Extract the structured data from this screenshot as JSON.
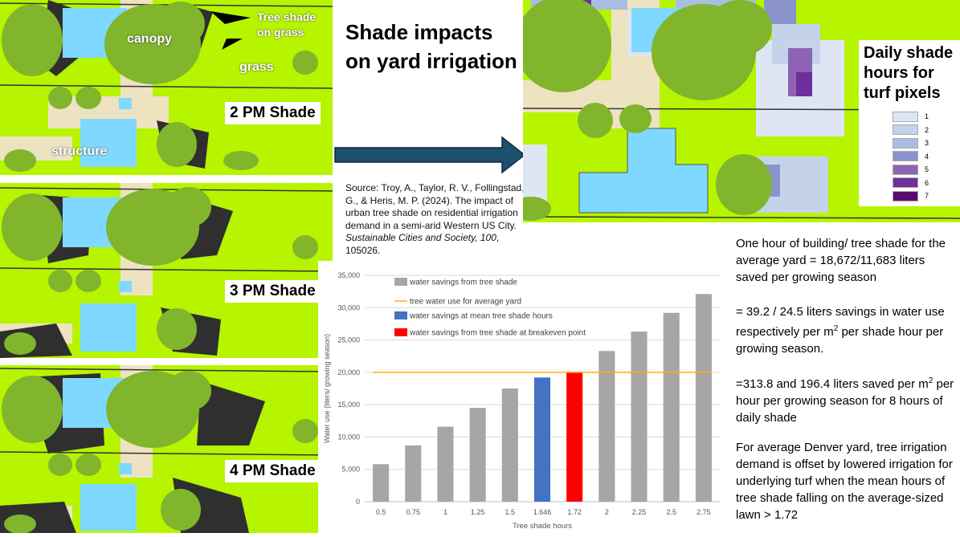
{
  "title": "Shade impacts on yard irrigation",
  "map_labels": {
    "tree_shade_on_grass": "Tree shade on grass",
    "canopy": "canopy",
    "grass": "grass",
    "structure": "structure"
  },
  "panels": [
    "2 PM Shade",
    "3 PM Shade",
    "4 PM Shade"
  ],
  "source": {
    "pre": "Source: Troy, A., Taylor, R. V., Follingstad, G., & Heris, M. P. (2024). The impact of urban tree shade on residential irrigation demand in a semi-arid Western US City. ",
    "journal": "Sustainable Cities and Society, 100",
    "post": ", 105026."
  },
  "legend": {
    "title": "Daily shade hours for turf pixels",
    "items": [
      {
        "label": "1",
        "color": "#dde6f2"
      },
      {
        "label": "2",
        "color": "#c4d3ea"
      },
      {
        "label": "3",
        "color": "#a9bde0"
      },
      {
        "label": "4",
        "color": "#8b93cc"
      },
      {
        "label": "5",
        "color": "#8e63b3"
      },
      {
        "label": "6",
        "color": "#6e2f9c"
      },
      {
        "label": "7",
        "color": "#5a0c6e"
      }
    ]
  },
  "notes": {
    "p1": "One hour of building/ tree shade for the average yard = 18,672/11,683 liters saved per growing season",
    "p2_pre": "= 39.2 / 24.5 liters savings in water use respectively per m",
    "p2_sup": "2",
    "p2_post": " per shade hour per growing season.",
    "p3_pre": "=313.8 and 196.4 liters saved per m",
    "p3_sup": "2",
    "p3_post": " per hour per growing season for 8 hours of daily shade",
    "p4": "For average Denver yard, tree irrigation demand is offset by lowered irrigation for underlying turf when the mean hours of tree shade falling on the average-sized lawn > 1.72"
  },
  "colors": {
    "grass": "#b6f400",
    "canopy": "#80b52c",
    "shade": "#2f2f2f",
    "structure": "#7fd8ff",
    "pavement": "#eee3c0",
    "arrow": "#1d4f6e"
  },
  "chart_data": {
    "type": "bar",
    "categories": [
      "0.5",
      "0.75",
      "1",
      "1.25",
      "1.5",
      "1.646",
      "1.72",
      "2",
      "2.25",
      "2.5",
      "2.75"
    ],
    "values": [
      5800,
      8700,
      11600,
      14500,
      17500,
      19200,
      20000,
      23300,
      26300,
      29200,
      32100
    ],
    "bar_colors": [
      "#a6a6a6",
      "#a6a6a6",
      "#a6a6a6",
      "#a6a6a6",
      "#a6a6a6",
      "#4472c4",
      "#ff0000",
      "#a6a6a6",
      "#a6a6a6",
      "#a6a6a6",
      "#a6a6a6"
    ],
    "reference_line": {
      "value": 20000,
      "color": "#ffb000"
    },
    "xlabel": "Tree shade hours",
    "ylabel": "Water use (liters/ growing season)",
    "ylim": [
      0,
      35000
    ],
    "yticks": [
      "0",
      "5,000",
      "10,000",
      "15,000",
      "20,000",
      "25,000",
      "30,000",
      "35,000"
    ],
    "grid": true,
    "legend": [
      {
        "label": "water savings from tree shade",
        "color": "#a6a6a6",
        "kind": "box"
      },
      {
        "label": "tree water use for average yard",
        "color": "#ffb000",
        "kind": "line"
      },
      {
        "label": "water savings at mean tree shade hours",
        "color": "#4472c4",
        "kind": "box"
      },
      {
        "label": "water savings from tree shade at breakeven point",
        "color": "#ff0000",
        "kind": "box"
      }
    ],
    "legend_position": "top-left"
  }
}
